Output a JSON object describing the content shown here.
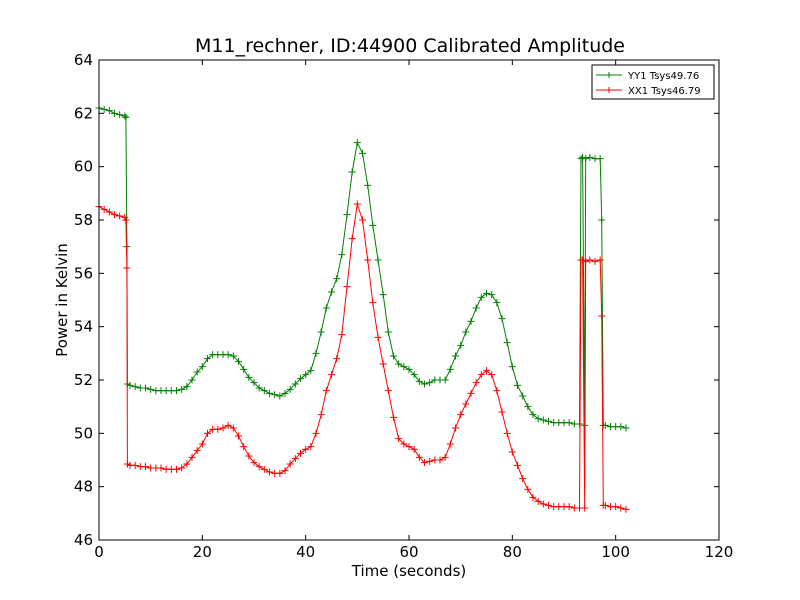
{
  "chart_data": {
    "type": "line",
    "title": "M11_rechner, ID:44900 Calibrated Amplitude",
    "xlabel": "Time (seconds)",
    "ylabel": "Power in Kelvin",
    "xlim": [
      0,
      120
    ],
    "ylim": [
      46,
      64
    ],
    "xticks": [
      "0",
      "20",
      "40",
      "60",
      "80",
      "100",
      "120"
    ],
    "yticks": [
      "46",
      "48",
      "50",
      "52",
      "54",
      "56",
      "58",
      "60",
      "62",
      "64"
    ],
    "grid": false,
    "legend_position": "top-right",
    "marker": "+",
    "series": [
      {
        "name": "YY1 Tsys49.76",
        "color": "#008000",
        "points": [
          [
            0,
            62.2
          ],
          [
            1,
            62.15
          ],
          [
            2,
            62.1
          ],
          [
            3,
            62.0
          ],
          [
            4,
            61.95
          ],
          [
            5,
            61.9
          ],
          [
            5.2,
            61.85
          ],
          [
            5.4,
            57.0
          ],
          [
            5.5,
            51.85
          ],
          [
            6,
            51.8
          ],
          [
            7,
            51.75
          ],
          [
            8,
            51.7
          ],
          [
            9,
            51.7
          ],
          [
            10,
            51.65
          ],
          [
            11,
            51.6
          ],
          [
            12,
            51.6
          ],
          [
            13,
            51.6
          ],
          [
            14,
            51.6
          ],
          [
            15,
            51.6
          ],
          [
            16,
            51.65
          ],
          [
            17,
            51.75
          ],
          [
            18,
            52.0
          ],
          [
            19,
            52.3
          ],
          [
            20,
            52.5
          ],
          [
            21,
            52.8
          ],
          [
            22,
            52.95
          ],
          [
            23,
            52.95
          ],
          [
            24,
            52.95
          ],
          [
            25,
            52.95
          ],
          [
            26,
            52.9
          ],
          [
            27,
            52.7
          ],
          [
            28,
            52.4
          ],
          [
            29,
            52.1
          ],
          [
            30,
            51.9
          ],
          [
            31,
            51.7
          ],
          [
            32,
            51.6
          ],
          [
            33,
            51.5
          ],
          [
            34,
            51.45
          ],
          [
            35,
            51.4
          ],
          [
            36,
            51.5
          ],
          [
            37,
            51.65
          ],
          [
            38,
            51.85
          ],
          [
            39,
            52.05
          ],
          [
            40,
            52.2
          ],
          [
            41,
            52.35
          ],
          [
            42,
            53.0
          ],
          [
            43,
            53.8
          ],
          [
            44,
            54.7
          ],
          [
            45,
            55.3
          ],
          [
            46,
            55.8
          ],
          [
            47,
            56.7
          ],
          [
            48,
            58.2
          ],
          [
            49,
            59.8
          ],
          [
            50,
            60.9
          ],
          [
            51,
            60.5
          ],
          [
            52,
            59.3
          ],
          [
            53,
            57.8
          ],
          [
            54,
            56.5
          ],
          [
            55,
            55.2
          ],
          [
            56,
            53.8
          ],
          [
            57,
            52.9
          ],
          [
            58,
            52.6
          ],
          [
            59,
            52.5
          ],
          [
            60,
            52.4
          ],
          [
            61,
            52.2
          ],
          [
            62,
            51.95
          ],
          [
            63,
            51.85
          ],
          [
            64,
            51.9
          ],
          [
            65,
            52.0
          ],
          [
            66,
            52.0
          ],
          [
            67,
            52.0
          ],
          [
            68,
            52.4
          ],
          [
            69,
            52.9
          ],
          [
            70,
            53.3
          ],
          [
            71,
            53.8
          ],
          [
            72,
            54.2
          ],
          [
            73,
            54.7
          ],
          [
            74,
            55.1
          ],
          [
            75,
            55.25
          ],
          [
            76,
            55.2
          ],
          [
            77,
            54.9
          ],
          [
            78,
            54.3
          ],
          [
            79,
            53.4
          ],
          [
            80,
            52.5
          ],
          [
            81,
            51.8
          ],
          [
            82,
            51.4
          ],
          [
            83,
            51.0
          ],
          [
            84,
            50.7
          ],
          [
            85,
            50.55
          ],
          [
            86,
            50.5
          ],
          [
            87,
            50.45
          ],
          [
            88,
            50.4
          ],
          [
            89,
            50.4
          ],
          [
            90,
            50.4
          ],
          [
            91,
            50.4
          ],
          [
            92,
            50.35
          ],
          [
            93,
            50.35
          ],
          [
            93.3,
            60.3
          ],
          [
            93.6,
            60.35
          ],
          [
            94,
            50.3
          ],
          [
            94.2,
            60.3
          ],
          [
            95,
            60.35
          ],
          [
            96,
            60.3
          ],
          [
            97,
            60.3
          ],
          [
            97.3,
            58.0
          ],
          [
            97.6,
            50.3
          ],
          [
            98,
            50.3
          ],
          [
            99,
            50.25
          ],
          [
            100,
            50.25
          ],
          [
            101,
            50.25
          ],
          [
            102,
            50.2
          ]
        ]
      },
      {
        "name": "XX1 Tsys46.79",
        "color": "#ff0000",
        "points": [
          [
            0,
            58.5
          ],
          [
            1,
            58.4
          ],
          [
            2,
            58.3
          ],
          [
            3,
            58.2
          ],
          [
            4,
            58.15
          ],
          [
            5,
            58.1
          ],
          [
            5.2,
            58.0
          ],
          [
            5.4,
            56.2
          ],
          [
            5.5,
            48.85
          ],
          [
            6,
            48.8
          ],
          [
            7,
            48.8
          ],
          [
            8,
            48.75
          ],
          [
            9,
            48.75
          ],
          [
            10,
            48.7
          ],
          [
            11,
            48.7
          ],
          [
            12,
            48.7
          ],
          [
            13,
            48.65
          ],
          [
            14,
            48.65
          ],
          [
            15,
            48.65
          ],
          [
            16,
            48.7
          ],
          [
            17,
            48.85
          ],
          [
            18,
            49.1
          ],
          [
            19,
            49.35
          ],
          [
            20,
            49.6
          ],
          [
            21,
            50.0
          ],
          [
            22,
            50.15
          ],
          [
            23,
            50.15
          ],
          [
            24,
            50.2
          ],
          [
            25,
            50.3
          ],
          [
            26,
            50.2
          ],
          [
            27,
            49.9
          ],
          [
            28,
            49.5
          ],
          [
            29,
            49.15
          ],
          [
            30,
            48.9
          ],
          [
            31,
            48.75
          ],
          [
            32,
            48.65
          ],
          [
            33,
            48.55
          ],
          [
            34,
            48.5
          ],
          [
            35,
            48.5
          ],
          [
            36,
            48.6
          ],
          [
            37,
            48.85
          ],
          [
            38,
            49.05
          ],
          [
            39,
            49.25
          ],
          [
            40,
            49.4
          ],
          [
            41,
            49.5
          ],
          [
            42,
            50.0
          ],
          [
            43,
            50.7
          ],
          [
            44,
            51.6
          ],
          [
            45,
            52.2
          ],
          [
            46,
            52.8
          ],
          [
            47,
            53.7
          ],
          [
            48,
            55.5
          ],
          [
            49,
            57.3
          ],
          [
            50,
            58.6
          ],
          [
            51,
            58.0
          ],
          [
            52,
            56.5
          ],
          [
            53,
            54.9
          ],
          [
            54,
            53.6
          ],
          [
            55,
            52.6
          ],
          [
            56,
            51.6
          ],
          [
            57,
            50.6
          ],
          [
            58,
            49.8
          ],
          [
            59,
            49.6
          ],
          [
            60,
            49.5
          ],
          [
            61,
            49.4
          ],
          [
            62,
            49.1
          ],
          [
            63,
            48.9
          ],
          [
            64,
            48.95
          ],
          [
            65,
            49.0
          ],
          [
            66,
            49.0
          ],
          [
            67,
            49.1
          ],
          [
            68,
            49.6
          ],
          [
            69,
            50.2
          ],
          [
            70,
            50.7
          ],
          [
            71,
            51.1
          ],
          [
            72,
            51.5
          ],
          [
            73,
            51.9
          ],
          [
            74,
            52.2
          ],
          [
            75,
            52.35
          ],
          [
            76,
            52.2
          ],
          [
            77,
            51.6
          ],
          [
            78,
            50.8
          ],
          [
            79,
            50.0
          ],
          [
            80,
            49.3
          ],
          [
            81,
            48.8
          ],
          [
            82,
            48.3
          ],
          [
            83,
            47.9
          ],
          [
            84,
            47.6
          ],
          [
            85,
            47.45
          ],
          [
            86,
            47.35
          ],
          [
            87,
            47.3
          ],
          [
            88,
            47.25
          ],
          [
            89,
            47.25
          ],
          [
            90,
            47.25
          ],
          [
            91,
            47.25
          ],
          [
            92,
            47.2
          ],
          [
            93,
            47.2
          ],
          [
            93.3,
            56.5
          ],
          [
            93.6,
            56.5
          ],
          [
            94,
            47.2
          ],
          [
            94.2,
            56.45
          ],
          [
            95,
            56.5
          ],
          [
            96,
            56.45
          ],
          [
            97,
            56.5
          ],
          [
            97.3,
            54.4
          ],
          [
            97.6,
            47.3
          ],
          [
            98,
            47.3
          ],
          [
            99,
            47.25
          ],
          [
            100,
            47.25
          ],
          [
            101,
            47.2
          ],
          [
            102,
            47.15
          ]
        ]
      }
    ]
  }
}
